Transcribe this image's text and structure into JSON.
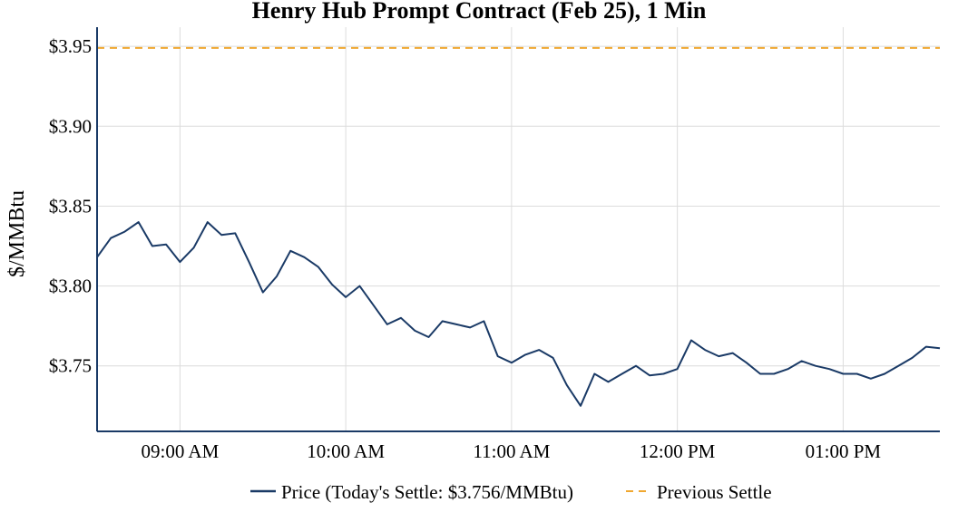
{
  "chart_data": {
    "type": "line",
    "title": "Henry Hub Prompt Contract (Feb 25), 1 Min",
    "xlabel": "",
    "ylabel": "$/MMBtu",
    "ylim": [
      3.709,
      3.962
    ],
    "xlim": [
      "08:30",
      "13:35"
    ],
    "grid": true,
    "legend_position": "bottom-center",
    "y_ticks": [
      "$3.75",
      "$3.80",
      "$3.85",
      "$3.90",
      "$3.95"
    ],
    "y_tick_values": [
      3.75,
      3.8,
      3.85,
      3.9,
      3.95
    ],
    "x_ticks": [
      "09:00 AM",
      "10:00 AM",
      "11:00 AM",
      "12:00 PM",
      "01:00 PM"
    ],
    "x_tick_values": [
      "09:00",
      "10:00",
      "11:00",
      "12:00",
      "13:00"
    ],
    "colors": {
      "price": "#1a3a66",
      "previous_settle": "#f0a830",
      "axis": "#1a3a66",
      "grid": "#dcdcdc"
    },
    "series": [
      {
        "name": "Price (Today's Settle: $3.756/MMBtu)",
        "x": [
          "08:30",
          "08:35",
          "08:40",
          "08:45",
          "08:50",
          "08:55",
          "09:00",
          "09:05",
          "09:10",
          "09:15",
          "09:20",
          "09:25",
          "09:30",
          "09:35",
          "09:40",
          "09:45",
          "09:50",
          "09:55",
          "10:00",
          "10:05",
          "10:10",
          "10:15",
          "10:20",
          "10:25",
          "10:30",
          "10:35",
          "10:40",
          "10:45",
          "10:50",
          "10:55",
          "11:00",
          "11:05",
          "11:10",
          "11:15",
          "11:20",
          "11:25",
          "11:30",
          "11:35",
          "11:40",
          "11:45",
          "11:50",
          "11:55",
          "12:00",
          "12:05",
          "12:10",
          "12:15",
          "12:20",
          "12:25",
          "12:30",
          "12:35",
          "12:40",
          "12:45",
          "12:50",
          "12:55",
          "13:00",
          "13:05",
          "13:10",
          "13:15",
          "13:20",
          "13:25",
          "13:30",
          "13:35"
        ],
        "y": [
          3.818,
          3.83,
          3.834,
          3.84,
          3.825,
          3.826,
          3.815,
          3.824,
          3.84,
          3.832,
          3.833,
          3.815,
          3.796,
          3.806,
          3.822,
          3.818,
          3.812,
          3.801,
          3.793,
          3.8,
          3.788,
          3.776,
          3.78,
          3.772,
          3.768,
          3.778,
          3.776,
          3.774,
          3.778,
          3.756,
          3.752,
          3.757,
          3.76,
          3.755,
          3.738,
          3.725,
          3.745,
          3.74,
          3.745,
          3.75,
          3.744,
          3.745,
          3.748,
          3.766,
          3.76,
          3.756,
          3.758,
          3.752,
          3.745,
          3.745,
          3.748,
          3.753,
          3.75,
          3.748,
          3.745,
          3.745,
          3.742,
          3.745,
          3.75,
          3.755,
          3.762,
          3.761
        ]
      },
      {
        "name": "Previous Settle",
        "value": 3.949,
        "style": "dashed"
      }
    ]
  }
}
